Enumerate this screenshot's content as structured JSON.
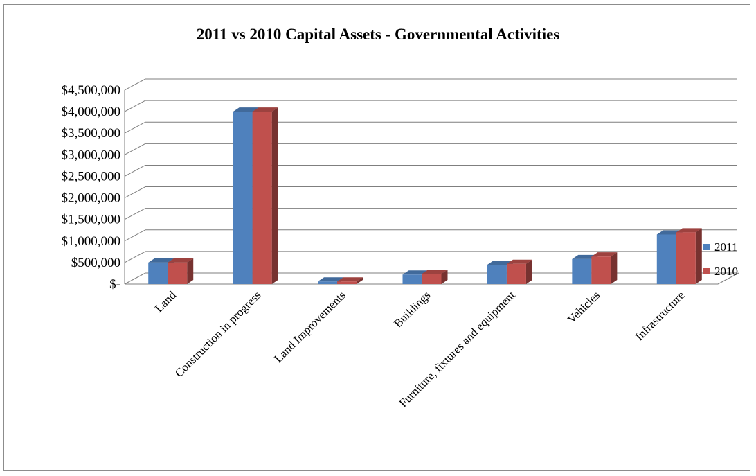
{
  "chart_data": {
    "type": "bar",
    "title": "2011 vs 2010 Capital Assets - Governmental Activities",
    "xlabel": "",
    "ylabel": "",
    "categories": [
      "Land",
      "Construction in progress",
      "Land Improvements",
      "Buildings",
      "Furniture, fixtures and equipment",
      "Vehicles",
      "Infrastructure"
    ],
    "series": [
      {
        "name": "2011",
        "color": "#4f81bd",
        "values": [
          500000,
          4000000,
          60000,
          220000,
          450000,
          580000,
          1150000
        ]
      },
      {
        "name": "2010",
        "color": "#c0504d",
        "values": [
          500000,
          4000000,
          60000,
          240000,
          470000,
          640000,
          1200000
        ]
      }
    ],
    "ylim": [
      0,
      4500000
    ],
    "yticks": [
      0,
      500000,
      1000000,
      1500000,
      2000000,
      2500000,
      3000000,
      3500000,
      4000000,
      4500000
    ],
    "ytick_labels": [
      "$-",
      "$500,000",
      "$1,000,000",
      "$1,500,000",
      "$2,000,000",
      "$2,500,000",
      "$3,000,000",
      "$3,500,000",
      "$4,000,000",
      "$4,500,000"
    ],
    "grid": true,
    "style": "3d-clustered-column",
    "legend_position": "right"
  }
}
